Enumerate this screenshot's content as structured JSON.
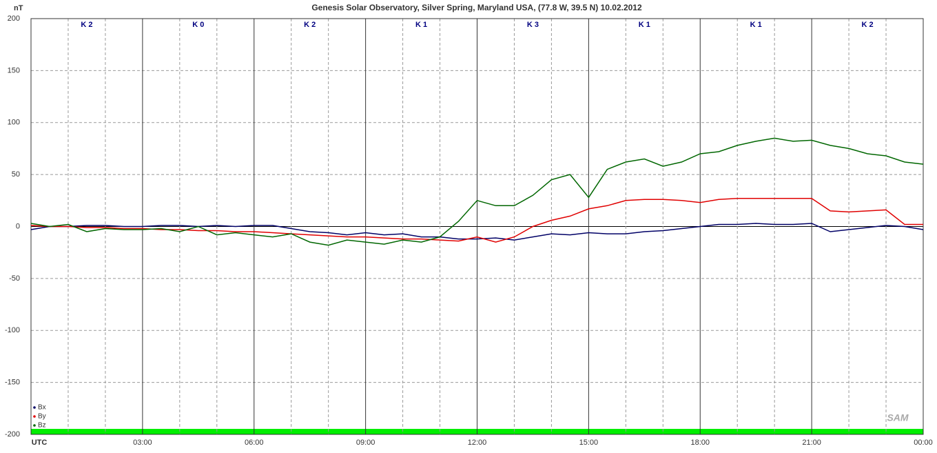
{
  "chart_data": {
    "type": "line",
    "title": "Genesis Solar Observatory, Silver Spring, Maryland USA, (77.8 W, 39.5 N)  10.02.2012",
    "y_label": "nT",
    "logo": "SAM",
    "x": [
      0,
      0.5,
      1,
      1.5,
      2,
      2.5,
      3,
      3.5,
      4,
      4.5,
      5,
      5.5,
      6,
      6.5,
      7,
      7.5,
      8,
      8.5,
      9,
      9.5,
      10,
      10.5,
      11,
      11.5,
      12,
      12.5,
      13,
      13.5,
      14,
      14.5,
      15,
      15.5,
      16,
      16.5,
      17,
      17.5,
      18,
      18.5,
      19,
      19.5,
      20,
      20.5,
      21,
      21.5,
      22,
      22.5,
      23,
      23.5,
      24
    ],
    "series": [
      {
        "name": "Bx",
        "color": "#000066",
        "values": [
          -3,
          0,
          0,
          1,
          1,
          0,
          0,
          1,
          1,
          0,
          1,
          0,
          1,
          1,
          -2,
          -5,
          -6,
          -8,
          -6,
          -8,
          -7,
          -10,
          -10,
          -12,
          -12,
          -11,
          -13,
          -10,
          -7,
          -8,
          -6,
          -7,
          -7,
          -5,
          -4,
          -2,
          0,
          2,
          2,
          3,
          2,
          2,
          3,
          -5,
          -3,
          -1,
          1,
          0,
          -3
        ]
      },
      {
        "name": "By",
        "color": "#e00000",
        "values": [
          1,
          0,
          0,
          -1,
          -1,
          -2,
          -2,
          -3,
          -3,
          -4,
          -4,
          -5,
          -5,
          -6,
          -7,
          -8,
          -9,
          -10,
          -10,
          -11,
          -12,
          -12,
          -13,
          -14,
          -10,
          -15,
          -10,
          0,
          6,
          10,
          17,
          20,
          25,
          26,
          26,
          25,
          23,
          26,
          27,
          27,
          27,
          27,
          27,
          15,
          14,
          15,
          16,
          2,
          2
        ]
      },
      {
        "name": "Bz",
        "color": "#006600",
        "values": [
          3,
          0,
          2,
          -5,
          -2,
          -3,
          -3,
          -2,
          -5,
          0,
          -8,
          -6,
          -8,
          -10,
          -7,
          -15,
          -18,
          -13,
          -15,
          -17,
          -13,
          -15,
          -10,
          5,
          25,
          20,
          20,
          30,
          45,
          50,
          28,
          55,
          62,
          65,
          58,
          62,
          70,
          72,
          78,
          82,
          85,
          82,
          83,
          78,
          75,
          70,
          68,
          62,
          60
        ]
      }
    ],
    "k_index": [
      "K 2",
      "K 0",
      "K 2",
      "K 1",
      "K 3",
      "K 1",
      "K 1",
      "K 2"
    ],
    "xlim": [
      0,
      24
    ],
    "xticks": [
      {
        "value": 0,
        "label": "UTC"
      },
      {
        "value": 3,
        "label": "03:00"
      },
      {
        "value": 6,
        "label": "06:00"
      },
      {
        "value": 9,
        "label": "09:00"
      },
      {
        "value": 12,
        "label": "12:00"
      },
      {
        "value": 15,
        "label": "15:00"
      },
      {
        "value": 18,
        "label": "18:00"
      },
      {
        "value": 21,
        "label": "21:00"
      },
      {
        "value": 24,
        "label": "00:00"
      }
    ],
    "minor_divisions": 3,
    "ylim": [
      -200,
      200
    ],
    "yticks": [
      -200,
      -150,
      -100,
      -50,
      0,
      50,
      100,
      150,
      200
    ],
    "grid": true,
    "legend": "lower left"
  }
}
